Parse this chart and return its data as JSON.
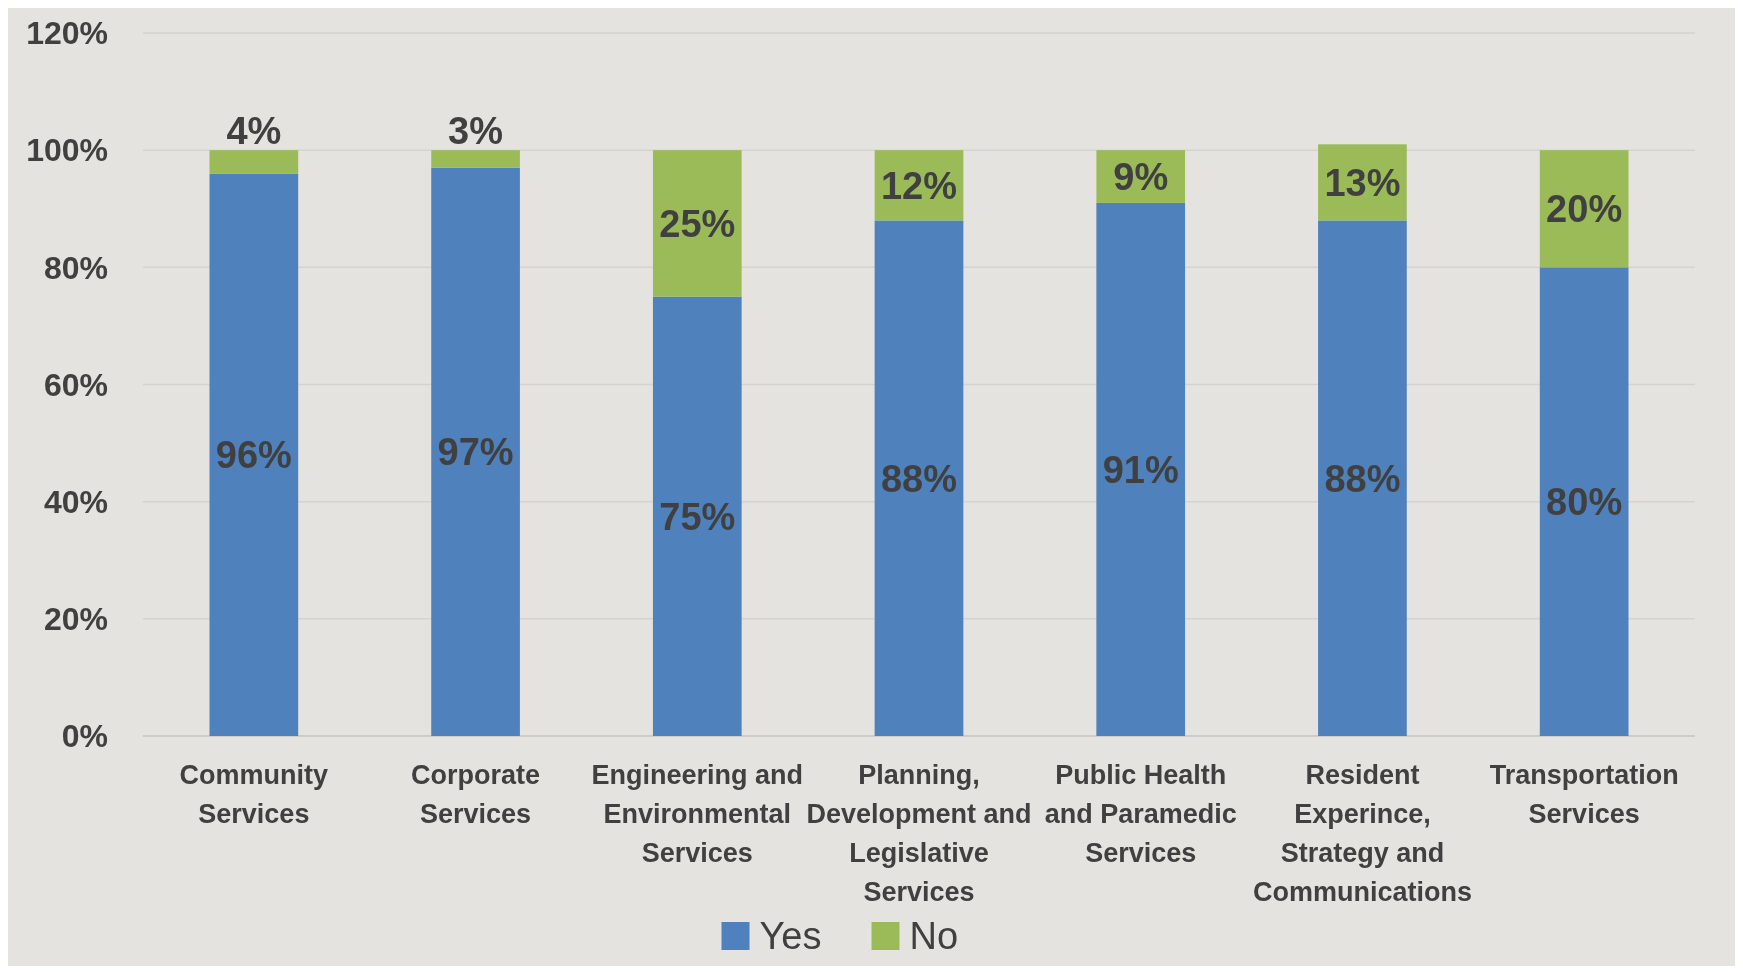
{
  "chart_data": {
    "type": "bar",
    "stacked": true,
    "categories": [
      "Community Services",
      "Corporate Services",
      "Engineering and Environmental Services",
      "Planning, Development and Legislative Services",
      "Public Health and Paramedic Services",
      "Resident Experince, Strategy and Communications",
      "Transportation Services"
    ],
    "series": [
      {
        "name": "Yes",
        "color": "#4f81bd",
        "values": [
          96,
          97,
          75,
          88,
          91,
          88,
          80
        ],
        "value_labels": [
          "96%",
          "97%",
          "75%",
          "88%",
          "91%",
          "88%",
          "80%"
        ]
      },
      {
        "name": "No",
        "color": "#9bbb59",
        "values": [
          4,
          3,
          25,
          12,
          9,
          13,
          20
        ],
        "value_labels": [
          "4%",
          "3%",
          "25%",
          "12%",
          "9%",
          "13%",
          "20%"
        ]
      }
    ],
    "ylim": [
      0,
      120
    ],
    "yticks": [
      {
        "value": 0,
        "label": "0%"
      },
      {
        "value": 20,
        "label": "20%"
      },
      {
        "value": 40,
        "label": "40%"
      },
      {
        "value": 60,
        "label": "60%"
      },
      {
        "value": 80,
        "label": "80%"
      },
      {
        "value": 100,
        "label": "100%"
      },
      {
        "value": 120,
        "label": "120%"
      }
    ],
    "grid": "y",
    "legend": "bottom"
  }
}
